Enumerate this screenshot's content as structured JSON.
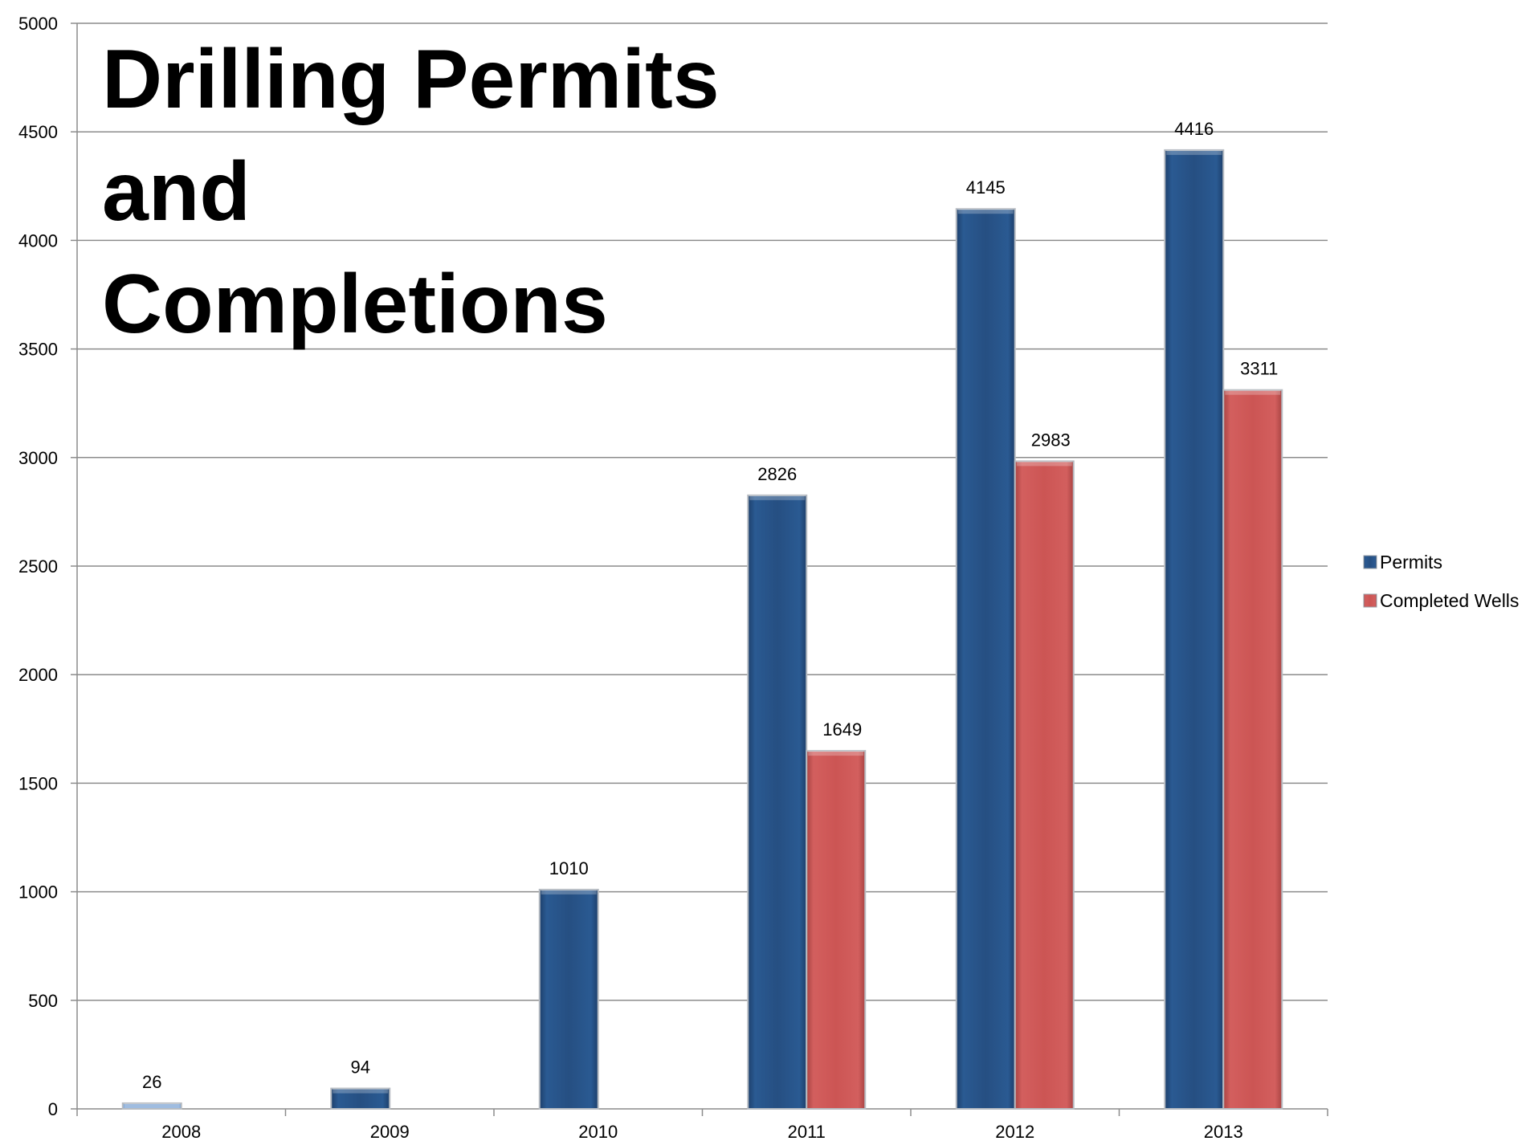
{
  "chart_data": {
    "type": "bar",
    "title_lines": [
      "Drilling Permits",
      "and",
      "Completions"
    ],
    "categories": [
      "2008",
      "2009",
      "2010",
      "2011",
      "2012",
      "2013"
    ],
    "series": [
      {
        "name": "Permits",
        "color": "#264f82",
        "values": [
          26,
          94,
          1010,
          2826,
          4145,
          4416
        ],
        "labels": [
          "26",
          "94",
          "1010",
          "2826",
          "4145",
          "4416"
        ]
      },
      {
        "name": "Completed Wells",
        "color": "#cc5554",
        "values": [
          null,
          null,
          null,
          1649,
          2983,
          3311
        ],
        "labels": [
          "",
          "",
          "",
          "1649",
          "2983",
          "3311"
        ]
      }
    ],
    "ylim": [
      0,
      5000
    ],
    "yticks": [
      "0",
      "500",
      "1000",
      "1500",
      "2000",
      "2500",
      "3000",
      "3500",
      "4000",
      "4500",
      "5000"
    ],
    "grid": true,
    "legend_position": "right"
  }
}
